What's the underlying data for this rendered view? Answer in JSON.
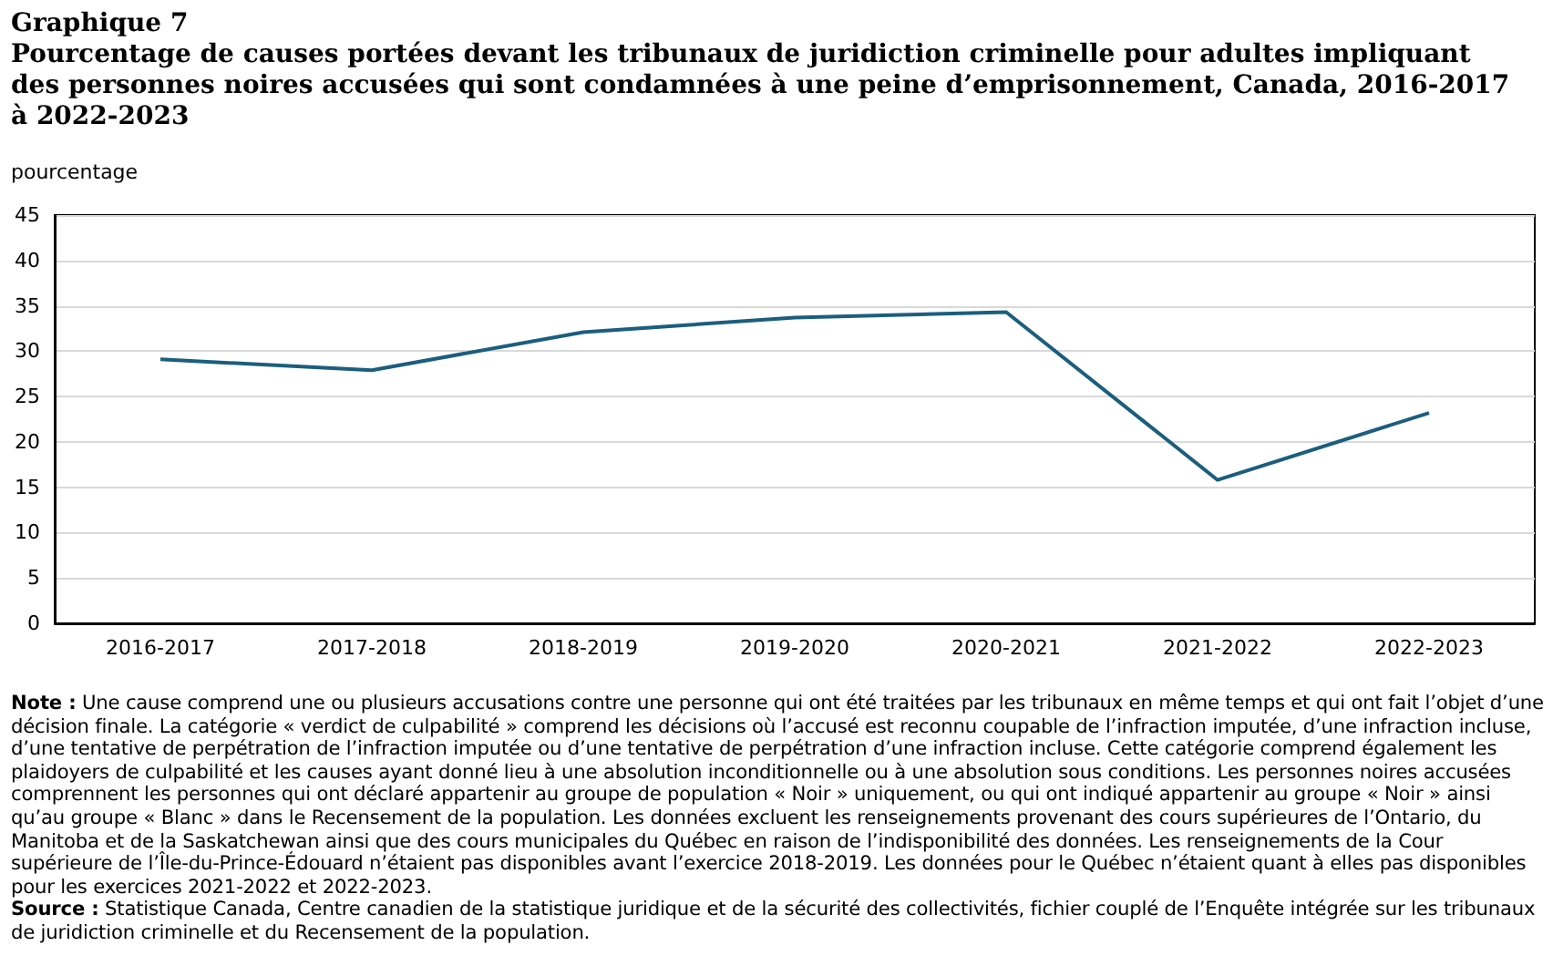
{
  "chart_data": {
    "type": "line",
    "title": "Graphique 7",
    "subtitle": "Pourcentage de causes portées devant les tribunaux de juridiction criminelle pour adultes impliquant des personnes noires accusées qui sont condamnées à une peine d’emprisonnement, Canada, 2016-2017 à 2022-2023",
    "ylabel": "pourcentage",
    "categories": [
      "2016-2017",
      "2017-2018",
      "2018-2019",
      "2019-2020",
      "2020-2021",
      "2021-2022",
      "2022-2023"
    ],
    "series": [
      {
        "color": "#1b5e7e",
        "values": [
          29.1,
          27.9,
          32.1,
          33.7,
          34.3,
          15.8,
          23.2
        ]
      }
    ],
    "ylim": [
      0,
      45
    ],
    "yticks": [
      0,
      5,
      10,
      15,
      20,
      25,
      30,
      35,
      40,
      45
    ],
    "grid": "y",
    "marker": "none",
    "line_style": "solid",
    "annotations": [
      "Note : Une cause comprend une ou plusieurs accusations contre une personne qui ont été traitées par les tribunaux en même temps et qui ont fait l’objet d’une décision finale. La catégorie « verdict de culpabilité » comprend les décisions où l’accusé est reconnu coupable de l’infraction imputée, d’une infraction incluse, d’une tentative de perpétration de l’infraction imputée ou d’une tentative de perpétration d’une infraction incluse. Cette catégorie comprend également les plaidoyers de culpabilité et les causes ayant donné lieu à une absolution inconditionnelle ou à une absolution sous conditions. Les personnes noires accusées comprennent les personnes qui ont déclaré appartenir au groupe de population « Noir » uniquement, ou qui ont indiqué appartenir au groupe « Noir » ainsi qu’au groupe « Blanc » dans le Recensement de la population. Les données excluent les renseignements provenant des cours supérieures de l’Ontario, du Manitoba et de la Saskatchewan ainsi que des cours municipales du Québec en raison de l’indisponibilité des données. Les renseignements de la Cour supérieure de l’Île-du-Prince-Édouard n’étaient pas disponibles avant l’exercice 2018-2019. Les données pour le Québec n’étaient quant à elles pas disponibles pour les exercices 2021-2022 et 2022-2023.",
      "Source : Statistique Canada, Centre canadien de la statistique juridique et de la sécurité des collectivités, fichier couplé de l’Enquête intégrée sur les tribunaux de juridiction criminelle et du Recensement de la population."
    ]
  }
}
